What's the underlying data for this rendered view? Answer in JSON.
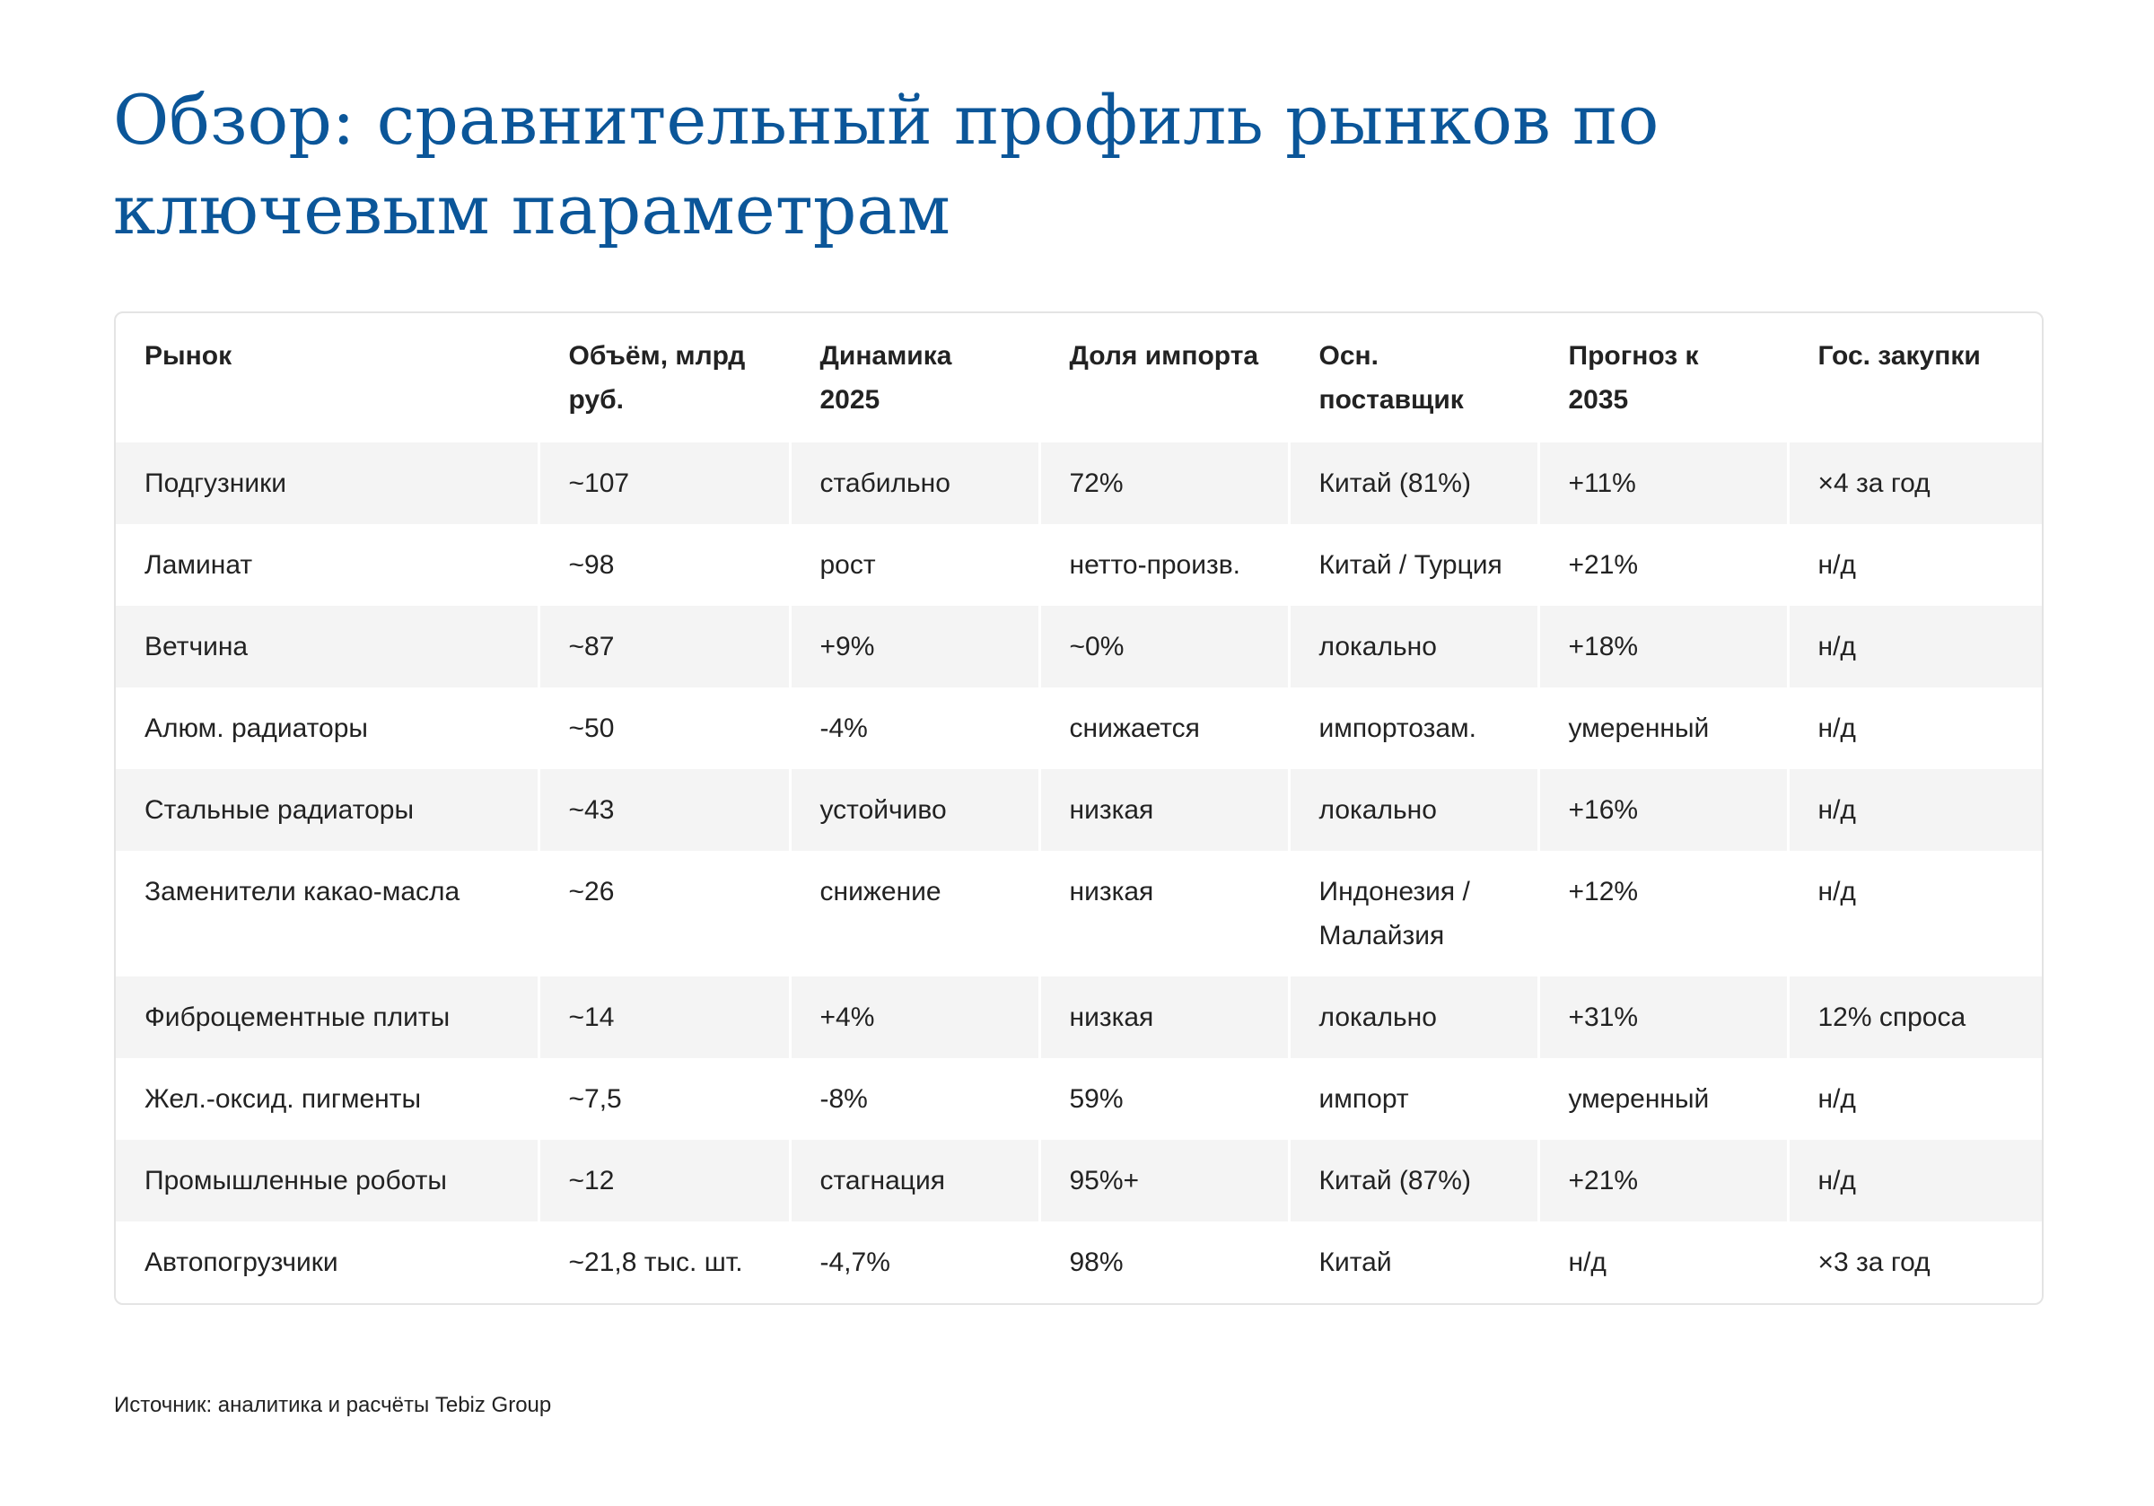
{
  "title": "Обзор: сравнительный профиль рынков по ключевым параметрам",
  "table": {
    "headers": [
      "Рынок",
      "Объём, млрд руб.",
      "Динамика 2025",
      "Доля импорта",
      "Осн. поставщик",
      "Прогноз к 2035",
      "Гос. закупки"
    ],
    "rows": [
      [
        "Подгузники",
        "~107",
        "стабильно",
        "72%",
        "Китай (81%)",
        "+11%",
        "×4 за год"
      ],
      [
        "Ламинат",
        "~98",
        "рост",
        "нетто-произв.",
        "Китай / Турция",
        "+21%",
        "н/д"
      ],
      [
        "Ветчина",
        "~87",
        "+9%",
        "~0%",
        "локально",
        "+18%",
        "н/д"
      ],
      [
        "Алюм. радиаторы",
        "~50",
        "-4%",
        "снижается",
        "импортозам.",
        "умеренный",
        "н/д"
      ],
      [
        "Стальные радиаторы",
        "~43",
        "устойчиво",
        "низкая",
        "локально",
        "+16%",
        "н/д"
      ],
      [
        "Заменители какао-масла",
        "~26",
        "снижение",
        "низкая",
        "Индонезия / Малайзия",
        "+12%",
        "н/д"
      ],
      [
        "Фиброцементные плиты",
        "~14",
        "+4%",
        "низкая",
        "локально",
        "+31%",
        "12% спроса"
      ],
      [
        "Жел.-оксид. пигменты",
        "~7,5",
        "-8%",
        "59%",
        "импорт",
        "умеренный",
        "н/д"
      ],
      [
        "Промышленные роботы",
        "~12",
        "стагнация",
        "95%+",
        "Китай (87%)",
        "+21%",
        "н/д"
      ],
      [
        "Автопогрузчики",
        "~21,8 тыс. шт.",
        "-4,7%",
        "98%",
        "Китай",
        "н/д",
        "×3 за год"
      ]
    ]
  },
  "source": "Источник: аналитика и расчёты Tebiz Group"
}
